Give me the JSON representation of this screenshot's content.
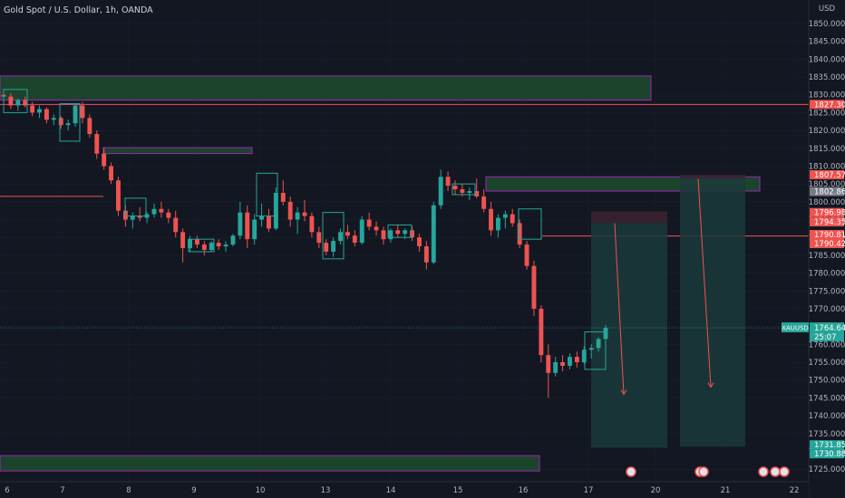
{
  "symbol_title": "Gold Spot / U.S. Dollar, 1h, OANDA",
  "currency": "USD",
  "ticker": "XAUUSD",
  "countdown": "25:07",
  "colors": {
    "background": "#131722",
    "up": "#26a69a",
    "down": "#ef5350",
    "zone_fill": "#1f4b2e",
    "zone_border": "#9c27b0",
    "resistance_line": "#ef5350",
    "short_target": "#1b3a3a",
    "short_stop": "#3a2330"
  },
  "chart_data": {
    "type": "candlestick",
    "ylim": [
      1722,
      1851
    ],
    "y_ticks": [
      1725,
      1730,
      1735,
      1740,
      1745,
      1750,
      1755,
      1760,
      1765,
      1770,
      1775,
      1780,
      1785,
      1790,
      1795,
      1800,
      1805,
      1810,
      1815,
      1820,
      1825,
      1830,
      1835,
      1840,
      1845,
      1850
    ],
    "y_tick_labels": [
      "1725.000",
      "1730.000",
      "1735.000",
      "1740.000",
      "1745.000",
      "1750.000",
      "1755.000",
      "1760.000",
      "1765.000",
      "1770.000",
      "1775.000",
      "1780.000",
      "1785.000",
      "1790.000",
      "1795.000",
      "1800.000",
      "1805.000",
      "1810.000",
      "1815.000",
      "1820.000",
      "1825.000",
      "1830.000",
      "1835.000",
      "1840.000",
      "1845.000",
      "1850.000"
    ],
    "x_labels": [
      "6",
      "7",
      "8",
      "9",
      "10",
      "13",
      "14",
      "15",
      "16",
      "17",
      "20",
      "21",
      "22"
    ],
    "price_tags": [
      {
        "value": 1827.308,
        "label": "1827.308",
        "color": "#ef5350"
      },
      {
        "value": 1807.57,
        "label": "1807.570",
        "color": "#ef5350"
      },
      {
        "value": 1802.866,
        "label": "1802.866",
        "color": "#787b86"
      },
      {
        "value": 1796.986,
        "label": "1796.986",
        "color": "#ef5350"
      },
      {
        "value": 1794.355,
        "label": "1794.355",
        "color": "#ef5350"
      },
      {
        "value": 1790.812,
        "label": "1790.812",
        "color": "#ef5350"
      },
      {
        "value": 1790.42,
        "label": "1790.420",
        "color": "#ef5350"
      },
      {
        "value": 1764.645,
        "label": "1764.645",
        "color": "#26a69a"
      },
      {
        "value": 1731.853,
        "label": "1731.853",
        "color": "#26a69a"
      },
      {
        "value": 1730.889,
        "label": "1730.889",
        "color": "#26a69a"
      }
    ],
    "last_price": 1764.645,
    "zones": [
      {
        "name": "supply-zone-top",
        "from": 1828.5,
        "to": 1835.3
      },
      {
        "name": "supply-zone-middle",
        "from": 1813.5,
        "to": 1815.2
      },
      {
        "name": "supply-zone-right",
        "from": 1803.0,
        "to": 1807.0
      },
      {
        "name": "demand-zone-bottom",
        "from": 1724.5,
        "to": 1728.8
      }
    ],
    "resistance_lines": [
      1827.3,
      1801.5,
      1790.4
    ],
    "short_positions": [
      {
        "entry": 1794.0,
        "stop": 1797.3,
        "target": 1731.0
      },
      {
        "entry": 1806.5,
        "stop": 1807.6,
        "target": 1731.3
      }
    ],
    "candles": [
      [
        1830.0,
        1831.5,
        1828.0,
        1829.5
      ],
      [
        1829.5,
        1830.5,
        1826.0,
        1827.0
      ],
      [
        1827.0,
        1829.0,
        1825.5,
        1828.5
      ],
      [
        1828.5,
        1829.5,
        1826.5,
        1827.0
      ],
      [
        1827.0,
        1828.0,
        1824.0,
        1825.0
      ],
      [
        1825.0,
        1827.0,
        1823.5,
        1826.0
      ],
      [
        1826.0,
        1826.5,
        1822.0,
        1823.0
      ],
      [
        1823.0,
        1824.5,
        1821.5,
        1823.5
      ],
      [
        1823.5,
        1824.0,
        1820.5,
        1821.5
      ],
      [
        1821.5,
        1823.0,
        1820.0,
        1822.0
      ],
      [
        1822.0,
        1827.5,
        1821.0,
        1827.0
      ],
      [
        1827.0,
        1828.0,
        1822.0,
        1823.5
      ],
      [
        1823.5,
        1824.5,
        1818.0,
        1819.0
      ],
      [
        1819.0,
        1820.0,
        1812.0,
        1813.5
      ],
      [
        1813.5,
        1815.0,
        1809.0,
        1810.0
      ],
      [
        1810.0,
        1811.0,
        1805.0,
        1806.0
      ],
      [
        1806.0,
        1807.0,
        1796.0,
        1797.5
      ],
      [
        1797.5,
        1799.0,
        1793.0,
        1795.0
      ],
      [
        1795.0,
        1797.0,
        1792.5,
        1796.0
      ],
      [
        1796.0,
        1798.5,
        1794.5,
        1795.5
      ],
      [
        1795.5,
        1797.0,
        1794.0,
        1796.5
      ],
      [
        1796.5,
        1799.5,
        1795.5,
        1798.0
      ],
      [
        1798.0,
        1800.0,
        1795.5,
        1797.0
      ],
      [
        1797.0,
        1798.0,
        1794.0,
        1795.5
      ],
      [
        1795.5,
        1797.5,
        1790.0,
        1791.5
      ],
      [
        1791.5,
        1792.5,
        1783.0,
        1787.0
      ],
      [
        1787.0,
        1790.5,
        1786.0,
        1789.5
      ],
      [
        1789.5,
        1790.5,
        1787.0,
        1788.0
      ],
      [
        1788.0,
        1789.0,
        1785.0,
        1786.5
      ],
      [
        1786.5,
        1789.0,
        1786.0,
        1788.5
      ],
      [
        1788.5,
        1789.5,
        1786.5,
        1787.5
      ],
      [
        1787.5,
        1789.0,
        1786.0,
        1788.0
      ],
      [
        1788.0,
        1791.0,
        1787.5,
        1790.5
      ],
      [
        1790.5,
        1800.0,
        1789.5,
        1797.0
      ],
      [
        1797.0,
        1799.0,
        1787.0,
        1789.5
      ],
      [
        1789.5,
        1796.5,
        1788.0,
        1795.0
      ],
      [
        1795.0,
        1799.5,
        1793.0,
        1796.0
      ],
      [
        1796.0,
        1798.0,
        1791.5,
        1792.5
      ],
      [
        1792.5,
        1804.0,
        1792.0,
        1802.5
      ],
      [
        1802.5,
        1806.0,
        1799.0,
        1800.0
      ],
      [
        1800.0,
        1801.5,
        1793.0,
        1795.0
      ],
      [
        1795.0,
        1798.5,
        1791.0,
        1797.0
      ],
      [
        1797.0,
        1800.5,
        1794.5,
        1796.0
      ],
      [
        1796.0,
        1797.0,
        1790.0,
        1791.5
      ],
      [
        1791.5,
        1793.0,
        1787.0,
        1788.5
      ],
      [
        1788.5,
        1789.5,
        1785.0,
        1786.0
      ],
      [
        1786.0,
        1790.0,
        1784.5,
        1789.0
      ],
      [
        1789.0,
        1792.5,
        1788.0,
        1791.5
      ],
      [
        1791.5,
        1793.5,
        1789.5,
        1790.5
      ],
      [
        1790.5,
        1792.0,
        1787.5,
        1788.5
      ],
      [
        1788.5,
        1796.0,
        1788.0,
        1795.0
      ],
      [
        1795.0,
        1797.0,
        1792.0,
        1793.0
      ],
      [
        1793.0,
        1794.5,
        1790.5,
        1792.0
      ],
      [
        1792.0,
        1793.0,
        1788.0,
        1789.5
      ],
      [
        1789.5,
        1792.5,
        1788.5,
        1792.0
      ],
      [
        1792.0,
        1793.5,
        1790.0,
        1791.0
      ],
      [
        1791.0,
        1792.5,
        1789.5,
        1792.0
      ],
      [
        1792.0,
        1793.0,
        1789.0,
        1790.0
      ],
      [
        1790.0,
        1791.0,
        1786.0,
        1787.5
      ],
      [
        1787.5,
        1789.0,
        1781.0,
        1783.0
      ],
      [
        1783.0,
        1800.0,
        1782.5,
        1799.0
      ],
      [
        1799.0,
        1809.0,
        1798.0,
        1807.0
      ],
      [
        1807.0,
        1808.5,
        1803.0,
        1804.5
      ],
      [
        1804.5,
        1806.0,
        1802.0,
        1803.5
      ],
      [
        1803.5,
        1805.0,
        1801.5,
        1802.5
      ],
      [
        1802.5,
        1804.0,
        1800.5,
        1803.0
      ],
      [
        1803.0,
        1806.5,
        1801.0,
        1801.5
      ],
      [
        1801.5,
        1803.5,
        1797.0,
        1798.0
      ],
      [
        1798.0,
        1800.0,
        1790.5,
        1792.0
      ],
      [
        1792.0,
        1796.5,
        1790.0,
        1795.5
      ],
      [
        1795.5,
        1797.5,
        1792.5,
        1796.5
      ],
      [
        1796.5,
        1798.0,
        1793.0,
        1794.0
      ],
      [
        1794.0,
        1795.0,
        1787.0,
        1788.0
      ],
      [
        1788.0,
        1789.0,
        1781.0,
        1782.0
      ],
      [
        1782.0,
        1783.5,
        1768.0,
        1770.0
      ],
      [
        1770.0,
        1771.0,
        1755.0,
        1757.0
      ],
      [
        1757.0,
        1760.0,
        1745.0,
        1752.0
      ],
      [
        1752.0,
        1756.5,
        1751.0,
        1755.0
      ],
      [
        1755.0,
        1757.0,
        1752.5,
        1754.0
      ],
      [
        1754.0,
        1757.5,
        1753.0,
        1756.5
      ],
      [
        1756.5,
        1758.0,
        1753.5,
        1755.0
      ],
      [
        1755.0,
        1759.5,
        1754.5,
        1758.5
      ],
      [
        1758.5,
        1760.0,
        1756.0,
        1759.0
      ],
      [
        1759.0,
        1762.0,
        1758.0,
        1761.5
      ],
      [
        1761.5,
        1765.5,
        1761.0,
        1764.645
      ]
    ]
  }
}
